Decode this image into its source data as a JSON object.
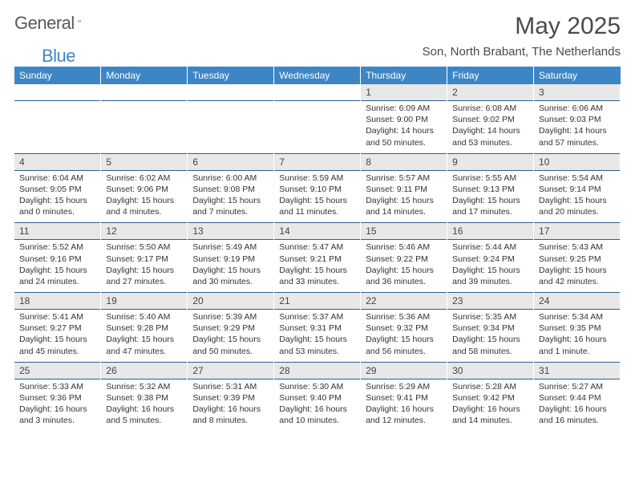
{
  "brand": {
    "general": "General",
    "blue": "Blue"
  },
  "title": "May 2025",
  "subtitle": "Son, North Brabant, The Netherlands",
  "colors": {
    "header_bg": "#3d86c6",
    "header_text": "#ffffff",
    "daynum_bg": "#e8e8e8",
    "row_divider": "#2f5e8a",
    "title_color": "#4a4a4a",
    "logo_gray": "#555a5e",
    "logo_blue": "#3d86c6"
  },
  "columns": [
    "Sunday",
    "Monday",
    "Tuesday",
    "Wednesday",
    "Thursday",
    "Friday",
    "Saturday"
  ],
  "weeks": [
    [
      null,
      null,
      null,
      null,
      {
        "n": "1",
        "sr": "6:09 AM",
        "ss": "9:00 PM",
        "dl": "14 hours and 50 minutes."
      },
      {
        "n": "2",
        "sr": "6:08 AM",
        "ss": "9:02 PM",
        "dl": "14 hours and 53 minutes."
      },
      {
        "n": "3",
        "sr": "6:06 AM",
        "ss": "9:03 PM",
        "dl": "14 hours and 57 minutes."
      }
    ],
    [
      {
        "n": "4",
        "sr": "6:04 AM",
        "ss": "9:05 PM",
        "dl": "15 hours and 0 minutes."
      },
      {
        "n": "5",
        "sr": "6:02 AM",
        "ss": "9:06 PM",
        "dl": "15 hours and 4 minutes."
      },
      {
        "n": "6",
        "sr": "6:00 AM",
        "ss": "9:08 PM",
        "dl": "15 hours and 7 minutes."
      },
      {
        "n": "7",
        "sr": "5:59 AM",
        "ss": "9:10 PM",
        "dl": "15 hours and 11 minutes."
      },
      {
        "n": "8",
        "sr": "5:57 AM",
        "ss": "9:11 PM",
        "dl": "15 hours and 14 minutes."
      },
      {
        "n": "9",
        "sr": "5:55 AM",
        "ss": "9:13 PM",
        "dl": "15 hours and 17 minutes."
      },
      {
        "n": "10",
        "sr": "5:54 AM",
        "ss": "9:14 PM",
        "dl": "15 hours and 20 minutes."
      }
    ],
    [
      {
        "n": "11",
        "sr": "5:52 AM",
        "ss": "9:16 PM",
        "dl": "15 hours and 24 minutes."
      },
      {
        "n": "12",
        "sr": "5:50 AM",
        "ss": "9:17 PM",
        "dl": "15 hours and 27 minutes."
      },
      {
        "n": "13",
        "sr": "5:49 AM",
        "ss": "9:19 PM",
        "dl": "15 hours and 30 minutes."
      },
      {
        "n": "14",
        "sr": "5:47 AM",
        "ss": "9:21 PM",
        "dl": "15 hours and 33 minutes."
      },
      {
        "n": "15",
        "sr": "5:46 AM",
        "ss": "9:22 PM",
        "dl": "15 hours and 36 minutes."
      },
      {
        "n": "16",
        "sr": "5:44 AM",
        "ss": "9:24 PM",
        "dl": "15 hours and 39 minutes."
      },
      {
        "n": "17",
        "sr": "5:43 AM",
        "ss": "9:25 PM",
        "dl": "15 hours and 42 minutes."
      }
    ],
    [
      {
        "n": "18",
        "sr": "5:41 AM",
        "ss": "9:27 PM",
        "dl": "15 hours and 45 minutes."
      },
      {
        "n": "19",
        "sr": "5:40 AM",
        "ss": "9:28 PM",
        "dl": "15 hours and 47 minutes."
      },
      {
        "n": "20",
        "sr": "5:39 AM",
        "ss": "9:29 PM",
        "dl": "15 hours and 50 minutes."
      },
      {
        "n": "21",
        "sr": "5:37 AM",
        "ss": "9:31 PM",
        "dl": "15 hours and 53 minutes."
      },
      {
        "n": "22",
        "sr": "5:36 AM",
        "ss": "9:32 PM",
        "dl": "15 hours and 56 minutes."
      },
      {
        "n": "23",
        "sr": "5:35 AM",
        "ss": "9:34 PM",
        "dl": "15 hours and 58 minutes."
      },
      {
        "n": "24",
        "sr": "5:34 AM",
        "ss": "9:35 PM",
        "dl": "16 hours and 1 minute."
      }
    ],
    [
      {
        "n": "25",
        "sr": "5:33 AM",
        "ss": "9:36 PM",
        "dl": "16 hours and 3 minutes."
      },
      {
        "n": "26",
        "sr": "5:32 AM",
        "ss": "9:38 PM",
        "dl": "16 hours and 5 minutes."
      },
      {
        "n": "27",
        "sr": "5:31 AM",
        "ss": "9:39 PM",
        "dl": "16 hours and 8 minutes."
      },
      {
        "n": "28",
        "sr": "5:30 AM",
        "ss": "9:40 PM",
        "dl": "16 hours and 10 minutes."
      },
      {
        "n": "29",
        "sr": "5:29 AM",
        "ss": "9:41 PM",
        "dl": "16 hours and 12 minutes."
      },
      {
        "n": "30",
        "sr": "5:28 AM",
        "ss": "9:42 PM",
        "dl": "16 hours and 14 minutes."
      },
      {
        "n": "31",
        "sr": "5:27 AM",
        "ss": "9:44 PM",
        "dl": "16 hours and 16 minutes."
      }
    ]
  ],
  "labels": {
    "sunrise": "Sunrise:",
    "sunset": "Sunset:",
    "daylight": "Daylight:"
  }
}
